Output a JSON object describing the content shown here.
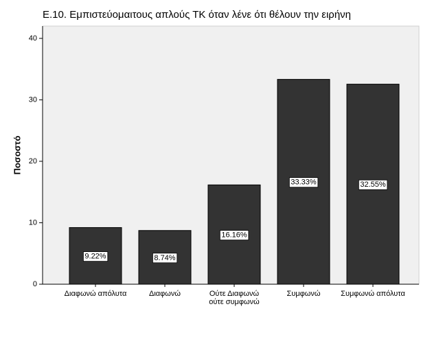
{
  "chart_data": {
    "type": "bar",
    "title": "Ε.10. Εμπιστεύομαιτους απλούς ΤΚ όταν λένε ότι θέλουν την ειρήνη",
    "y_label": "Ποσοστό",
    "categories": [
      "Διαφωνώ απόλυτα",
      "Διαφωνώ",
      "Ούτε Διαφωνώ ούτε συμφωνώ",
      "Συμφωνώ",
      "Συμφωνώ απόλυτα"
    ],
    "values": [
      9.22,
      8.74,
      16.16,
      33.33,
      32.55
    ],
    "value_labels": [
      "9.22%",
      "8.74%",
      "16.16%",
      "33.33%",
      "32.55%"
    ],
    "color": "#333333",
    "ylim": [
      0,
      42
    ],
    "yticks": [
      0,
      10,
      20,
      30,
      40
    ]
  }
}
